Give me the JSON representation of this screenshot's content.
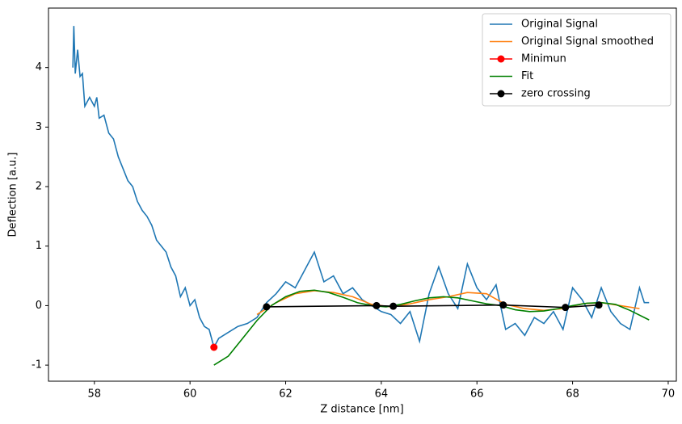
{
  "chart_data": {
    "type": "line",
    "xlabel": "Z distance [nm]",
    "ylabel": "Deflection [a.u.]",
    "xlim": [
      57.04,
      70.17
    ],
    "ylim": [
      -1.27,
      5.0
    ],
    "xticks": [
      58,
      60,
      62,
      64,
      66,
      68,
      70
    ],
    "yticks": [
      -1,
      0,
      1,
      2,
      3,
      4
    ],
    "legend": "upper right",
    "series": [
      {
        "name": "Original Signal",
        "color": "#1f77b4",
        "marker": "none",
        "x": [
          57.55,
          57.57,
          57.6,
          57.65,
          57.7,
          57.75,
          57.8,
          57.9,
          58.0,
          58.05,
          58.1,
          58.2,
          58.3,
          58.4,
          58.5,
          58.6,
          58.7,
          58.8,
          58.9,
          59.0,
          59.1,
          59.2,
          59.3,
          59.4,
          59.5,
          59.6,
          59.7,
          59.8,
          59.9,
          60.0,
          60.1,
          60.2,
          60.3,
          60.4,
          60.5,
          60.6,
          60.8,
          61.0,
          61.2,
          61.4,
          61.6,
          61.8,
          62.0,
          62.2,
          62.4,
          62.6,
          62.8,
          63.0,
          63.2,
          63.4,
          63.6,
          63.8,
          64.0,
          64.2,
          64.4,
          64.6,
          64.8,
          65.0,
          65.2,
          65.4,
          65.6,
          65.8,
          66.0,
          66.2,
          66.4,
          66.6,
          66.8,
          67.0,
          67.2,
          67.4,
          67.6,
          67.8,
          68.0,
          68.2,
          68.4,
          68.6,
          68.8,
          69.0,
          69.2,
          69.4,
          69.5,
          69.6
        ],
        "values": [
          4.0,
          4.7,
          3.9,
          4.3,
          3.85,
          3.9,
          3.35,
          3.5,
          3.35,
          3.5,
          3.15,
          3.2,
          2.9,
          2.8,
          2.5,
          2.3,
          2.1,
          2.0,
          1.75,
          1.6,
          1.5,
          1.35,
          1.1,
          1.0,
          0.9,
          0.65,
          0.5,
          0.15,
          0.3,
          0.0,
          0.1,
          -0.2,
          -0.35,
          -0.4,
          -0.7,
          -0.55,
          -0.45,
          -0.35,
          -0.3,
          -0.2,
          0.05,
          0.2,
          0.4,
          0.3,
          0.6,
          0.9,
          0.4,
          0.5,
          0.2,
          0.3,
          0.1,
          0.0,
          -0.1,
          -0.15,
          -0.3,
          -0.1,
          -0.6,
          0.2,
          0.65,
          0.2,
          -0.05,
          0.7,
          0.3,
          0.1,
          0.35,
          -0.4,
          -0.3,
          -0.5,
          -0.2,
          -0.3,
          -0.1,
          -0.4,
          0.3,
          0.1,
          -0.2,
          0.3,
          -0.1,
          -0.3,
          -0.4,
          0.3,
          0.05,
          0.05
        ]
      },
      {
        "name": "Original Signal smoothed",
        "color": "#ff7f0e",
        "marker": "none",
        "x": [
          61.4,
          61.8,
          62.2,
          62.6,
          63.0,
          63.4,
          63.8,
          64.2,
          64.6,
          65.0,
          65.4,
          65.8,
          66.2,
          66.6,
          67.0,
          67.4,
          67.8,
          68.2,
          68.6,
          69.0,
          69.4
        ],
        "values": [
          -0.15,
          0.05,
          0.2,
          0.25,
          0.22,
          0.15,
          0.02,
          -0.02,
          0.03,
          0.1,
          0.15,
          0.22,
          0.2,
          0.02,
          -0.05,
          -0.08,
          -0.05,
          0.03,
          0.05,
          0.0,
          -0.05
        ]
      },
      {
        "name": "Minimun",
        "color": "#ff0000",
        "marker": "o",
        "line": false,
        "x": [
          60.5
        ],
        "values": [
          -0.7
        ]
      },
      {
        "name": "Fit",
        "color": "#008000",
        "marker": "none",
        "x": [
          60.5,
          60.8,
          61.1,
          61.4,
          61.7,
          62.0,
          62.3,
          62.6,
          62.9,
          63.2,
          63.5,
          63.8,
          64.1,
          64.4,
          64.7,
          65.0,
          65.3,
          65.6,
          65.9,
          66.2,
          66.5,
          66.8,
          67.1,
          67.4,
          67.7,
          68.0,
          68.3,
          68.6,
          68.9,
          69.2,
          69.6
        ],
        "values": [
          -1.0,
          -0.85,
          -0.55,
          -0.25,
          0.0,
          0.15,
          0.24,
          0.26,
          0.22,
          0.14,
          0.05,
          0.0,
          -0.02,
          0.02,
          0.08,
          0.13,
          0.15,
          0.13,
          0.08,
          0.03,
          0.0,
          -0.07,
          -0.1,
          -0.09,
          -0.05,
          0.0,
          0.04,
          0.05,
          0.02,
          -0.08,
          -0.24
        ]
      },
      {
        "name": "zero crossing",
        "color": "#000000",
        "marker": "o",
        "x": [
          61.6,
          63.9,
          64.25,
          66.55,
          67.85,
          68.55
        ],
        "values": [
          -0.02,
          0.0,
          -0.01,
          0.01,
          -0.03,
          0.01
        ]
      }
    ]
  }
}
